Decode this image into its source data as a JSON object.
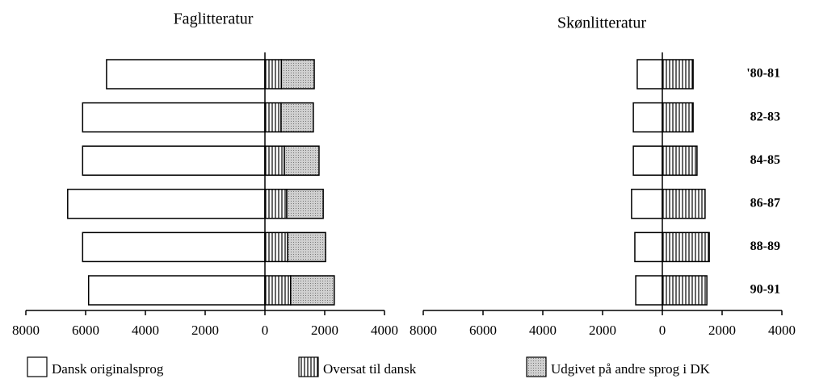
{
  "chart_data": [
    {
      "type": "bar",
      "orientation": "horizontal",
      "stacked": true,
      "title": "Faglitteratur",
      "xlim": [
        -8000,
        4000
      ],
      "xticks": [
        {
          "value": -8000,
          "label": "8000"
        },
        {
          "value": -6000,
          "label": "6000"
        },
        {
          "value": -4000,
          "label": "4000"
        },
        {
          "value": -2000,
          "label": "2000"
        },
        0,
        2000,
        4000
      ],
      "series": [
        {
          "name": "Dansk originalsprog",
          "color": "#ffffff",
          "pattern": "none",
          "values": [
            -5300,
            -6100,
            -6100,
            -6600,
            -6100,
            -5900
          ]
        },
        {
          "name": "Oversat til dansk",
          "color": "#ffffff",
          "pattern": "vlines",
          "values": [
            550,
            540,
            650,
            730,
            760,
            860
          ]
        },
        {
          "name": "Udgivet på andre sprog i DK",
          "color": "#c8c8c8",
          "pattern": "dots",
          "values": [
            1100,
            1080,
            1160,
            1220,
            1270,
            1460
          ]
        }
      ]
    },
    {
      "type": "bar",
      "orientation": "horizontal",
      "stacked": true,
      "title": "Skønlitteratur",
      "categories": [
        "'80-81",
        "82-83",
        "84-85",
        "86-87",
        "88-89",
        "90-91"
      ],
      "xlim": [
        -8000,
        4000
      ],
      "xticks": [
        {
          "value": -8000,
          "label": "8000"
        },
        {
          "value": -6000,
          "label": "6000"
        },
        {
          "value": -4000,
          "label": "4000"
        },
        {
          "value": -2000,
          "label": "2000"
        },
        0,
        2000,
        4000
      ],
      "series": [
        {
          "color": "#ffffff",
          "pattern": "none",
          "values": [
            -840,
            -970,
            -970,
            -1030,
            -920,
            -890
          ]
        },
        {
          "color": "#ffffff",
          "pattern": "vlines",
          "values": [
            1030,
            1030,
            1160,
            1430,
            1570,
            1490
          ]
        }
      ]
    }
  ]
}
